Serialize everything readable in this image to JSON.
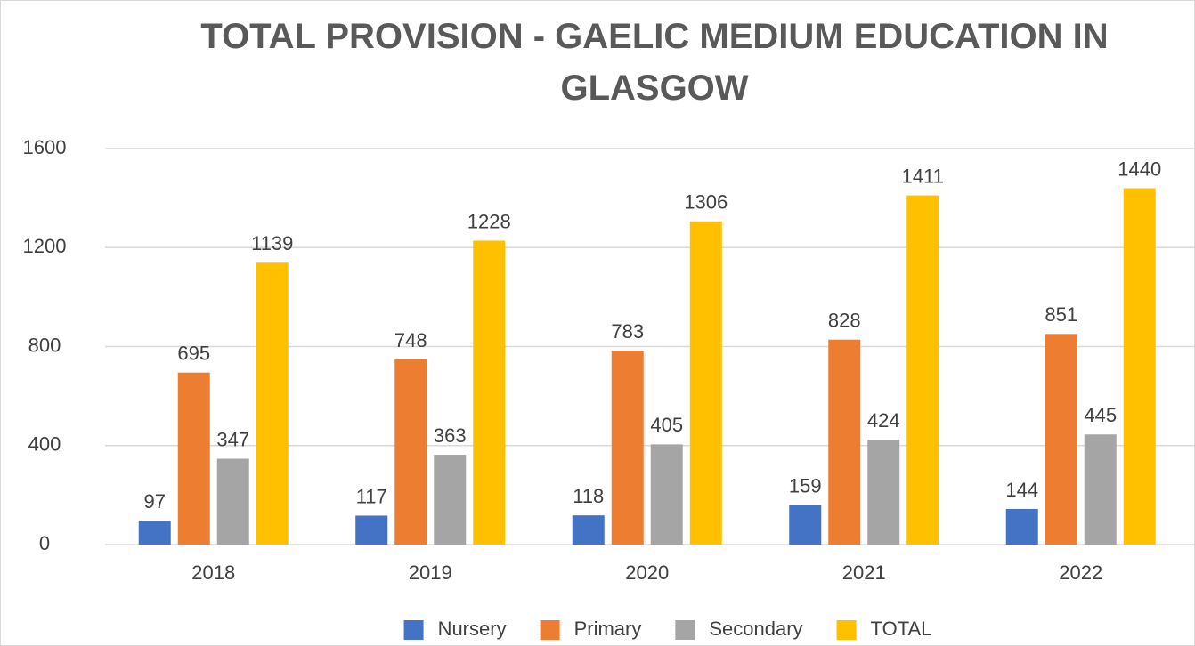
{
  "chart_data": {
    "type": "bar",
    "title": "TOTAL PROVISION - GAELIC MEDIUM EDUCATION IN GLASGOW",
    "categories": [
      "2018",
      "2019",
      "2020",
      "2021",
      "2022"
    ],
    "series": [
      {
        "name": "Nursery",
        "color": "#4472c4",
        "values": [
          97,
          117,
          118,
          159,
          144
        ]
      },
      {
        "name": "Primary",
        "color": "#ed7d31",
        "values": [
          695,
          748,
          783,
          828,
          851
        ]
      },
      {
        "name": "Secondary",
        "color": "#a5a5a5",
        "values": [
          347,
          363,
          405,
          424,
          445
        ]
      },
      {
        "name": "TOTAL",
        "color": "#ffc000",
        "values": [
          1139,
          1228,
          1306,
          1411,
          1440
        ]
      }
    ],
    "ylim": [
      0,
      1600
    ],
    "yticks": [
      0,
      400,
      800,
      1200,
      1600
    ],
    "grid": true,
    "legend": "bottom"
  }
}
